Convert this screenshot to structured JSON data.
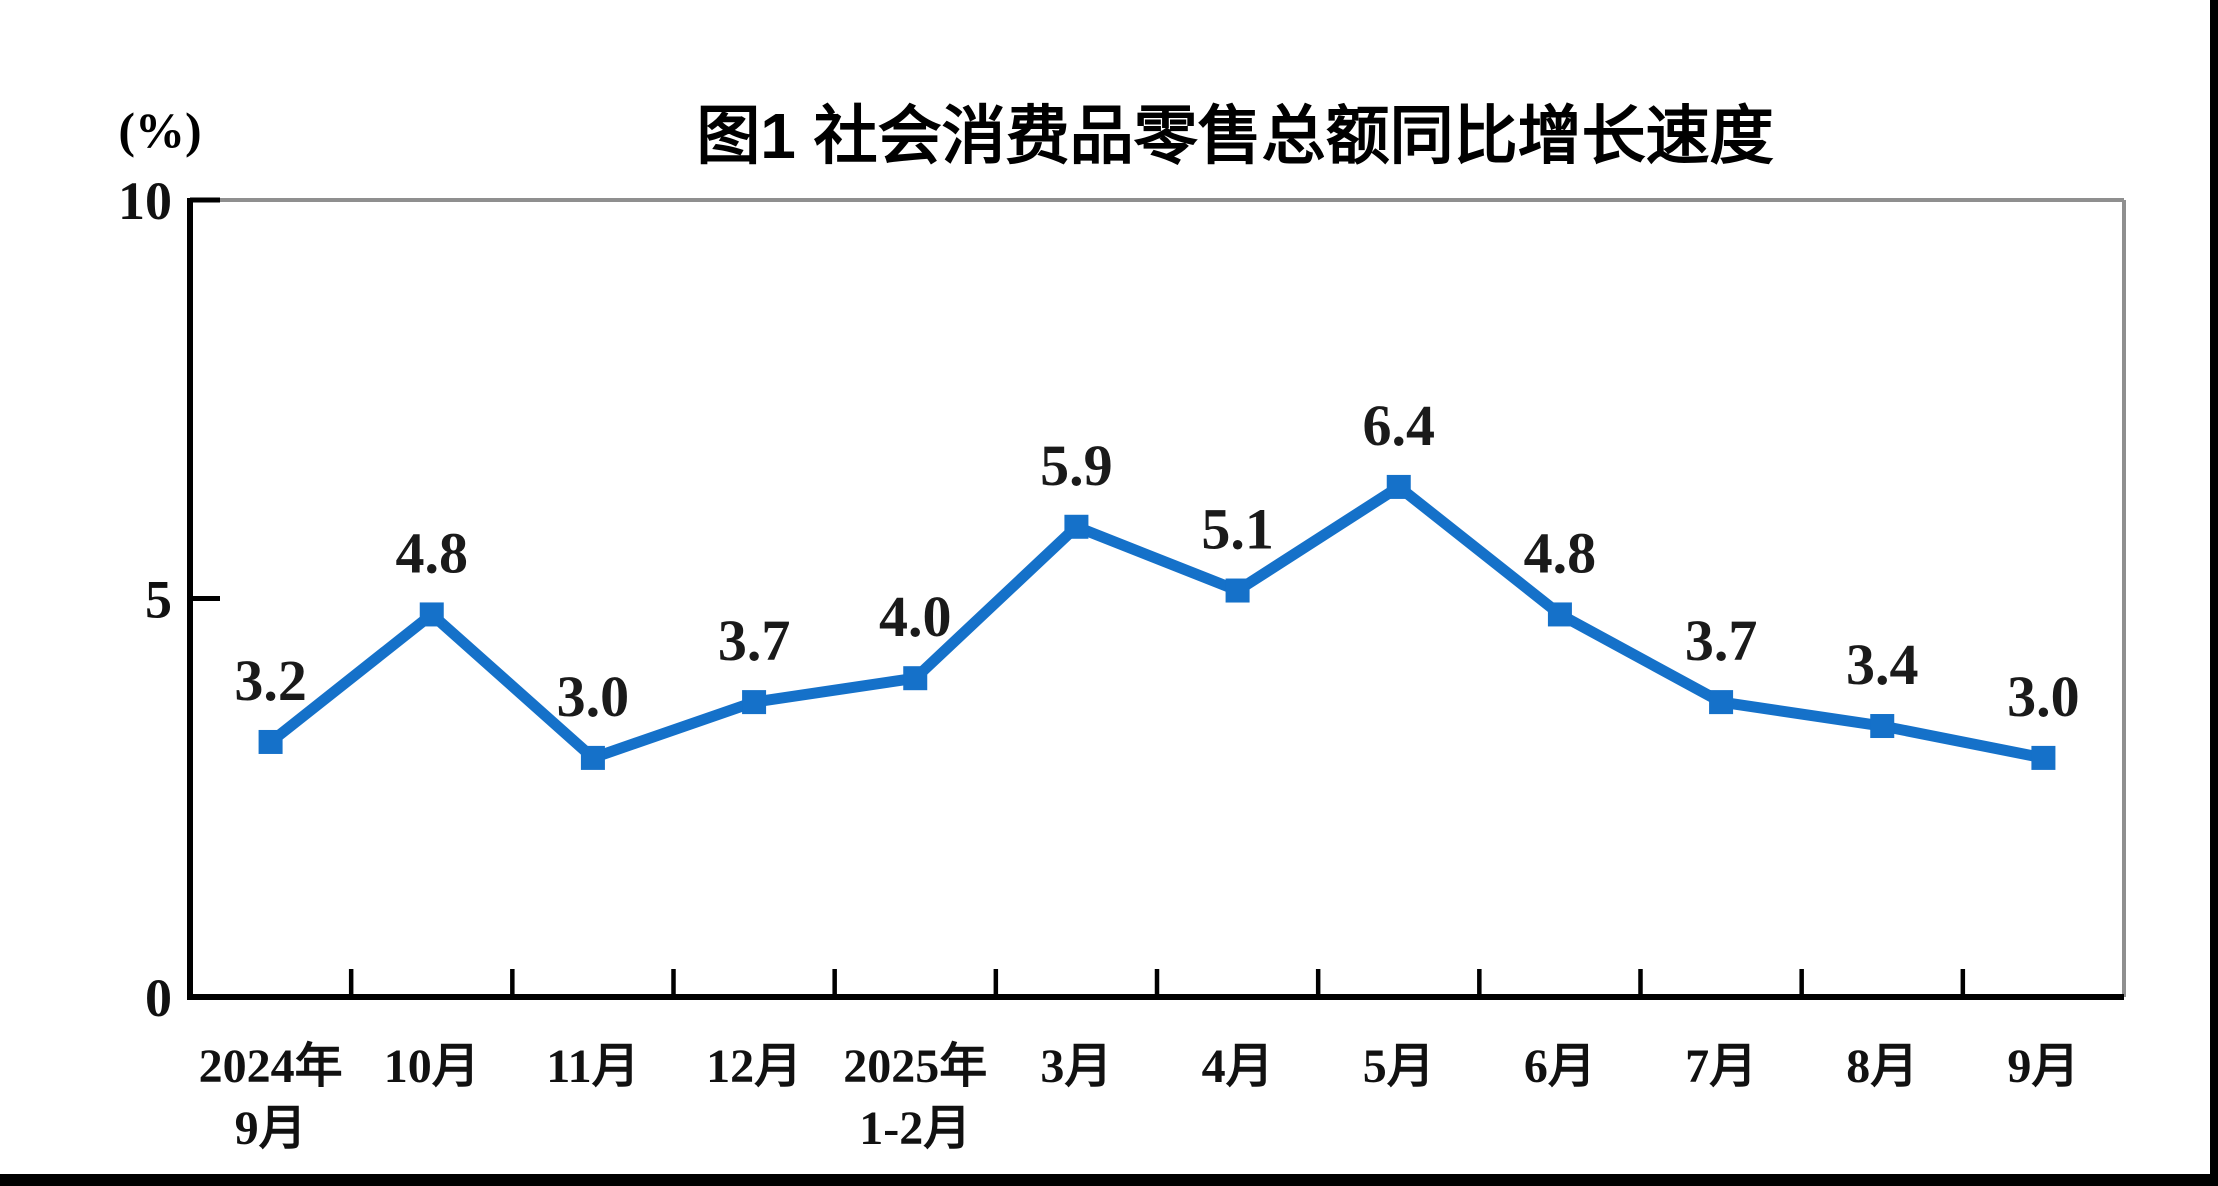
{
  "chart_data": {
    "type": "line",
    "title": "图1  社会消费品零售总额同比增长速度",
    "unit_label": "(%)",
    "categories": [
      [
        "2024年",
        "9月"
      ],
      [
        "10月"
      ],
      [
        "11月"
      ],
      [
        "12月"
      ],
      [
        "2025年",
        "1-2月"
      ],
      [
        "3月"
      ],
      [
        "4月"
      ],
      [
        "5月"
      ],
      [
        "6月"
      ],
      [
        "7月"
      ],
      [
        "8月"
      ],
      [
        "9月"
      ]
    ],
    "values": [
      3.2,
      4.8,
      3.0,
      3.7,
      4.0,
      5.9,
      5.1,
      6.4,
      4.8,
      3.7,
      3.4,
      3.0
    ],
    "point_labels": [
      "3.2",
      "4.8",
      "3.0",
      "3.7",
      "4.0",
      "5.9",
      "5.1",
      "6.4",
      "4.8",
      "3.7",
      "3.4",
      "3.0"
    ],
    "y_ticks": [
      0,
      5,
      10
    ],
    "ylim": [
      0,
      10
    ],
    "grid": false,
    "legend": "none",
    "marker_shape": "square",
    "colors": {
      "line": "#1571C9",
      "marker": "#1571C9",
      "point_label_text": "#1A1A1A",
      "axis_text": "#111111",
      "axis_line": "#000000",
      "border_light": "#8F8F8F",
      "frame": "#000000",
      "background": "#FFFFFF"
    }
  }
}
